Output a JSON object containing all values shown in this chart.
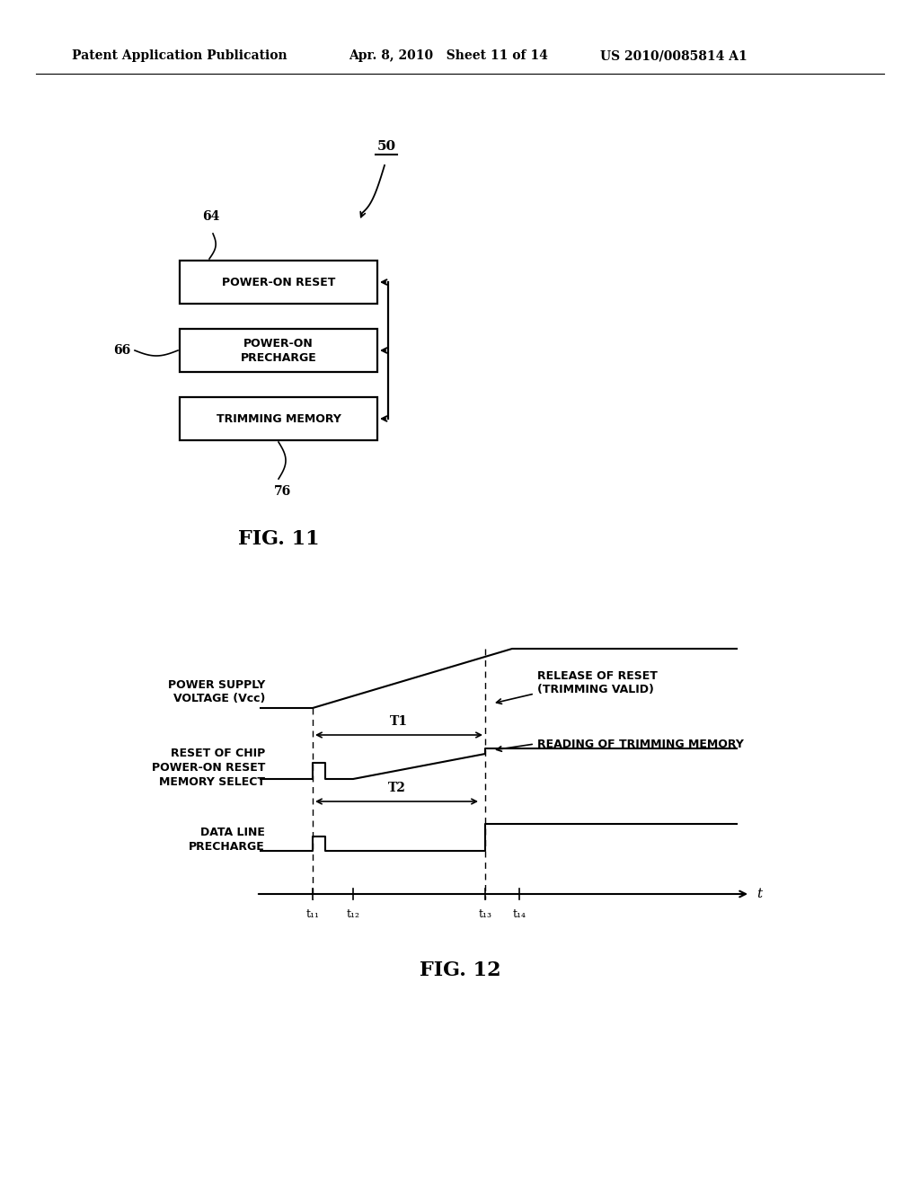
{
  "bg_color": "#ffffff",
  "header_left": "Patent Application Publication",
  "header_mid": "Apr. 8, 2010   Sheet 11 of 14",
  "header_right": "US 2010/0085814 A1",
  "fig11_label": "FIG. 11",
  "fig12_label": "FIG. 12",
  "box_label_50": "50",
  "box_label_64": "64",
  "box_label_66": "66",
  "box_label_76": "76",
  "box1_text": "POWER-ON RESET",
  "box2_text": "POWER-ON\nPRECHARGE",
  "box3_text": "TRIMMING MEMORY",
  "sig1_label": "POWER SUPPLY\nVOLTAGE (Vcc)",
  "sig2_label": "RESET OF CHIP\nPOWER-ON RESET\nMEMORY SELECT",
  "sig3_label": "DATA LINE\nPRECHARGE",
  "annot_T1": "T1",
  "annot_T2": "T2",
  "annot_release": "RELEASE OF RESET\n(TRIMMING VALID)",
  "annot_reading": "READING OF TRIMMING MEMORY",
  "time_axis_label": "t",
  "t11": "t₁₁",
  "t12": "t₁₂",
  "t13": "t₁₃",
  "t14": "t₁₄"
}
